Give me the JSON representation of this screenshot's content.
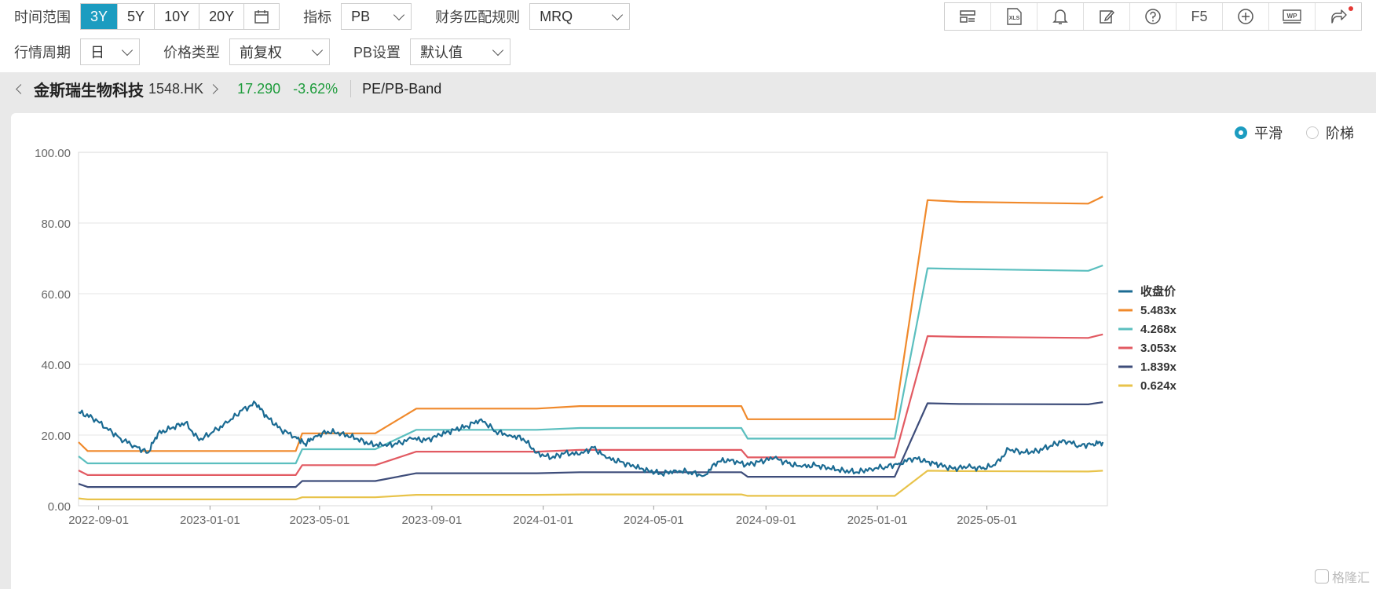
{
  "toolbar": {
    "time_range_label": "时间范围",
    "ranges": [
      "3Y",
      "5Y",
      "10Y",
      "20Y"
    ],
    "active_range": "3Y",
    "indicator_label": "指标",
    "indicator_value": "PB",
    "rule_label": "财务匹配规则",
    "rule_value": "MRQ",
    "period_label": "行情周期",
    "period_value": "日",
    "price_type_label": "价格类型",
    "price_type_value": "前复权",
    "pb_setting_label": "PB设置",
    "pb_setting_value": "默认值",
    "tools": [
      {
        "icon": "layout-icon"
      },
      {
        "icon": "xls-export-icon",
        "text": "XLS"
      },
      {
        "icon": "bell-icon"
      },
      {
        "icon": "edit-icon"
      },
      {
        "icon": "help-icon"
      },
      {
        "icon": "f5-refresh",
        "text": "F5"
      },
      {
        "icon": "add-circle-icon"
      },
      {
        "icon": "wps-icon",
        "text": "WP"
      },
      {
        "icon": "share-icon"
      }
    ]
  },
  "stock": {
    "name": "金斯瑞生物科技",
    "code": "1548.HK",
    "price": "17.290",
    "change": "-3.62%",
    "chart_title": "PE/PB-Band",
    "price_color": "#1e9c3c"
  },
  "display_mode": {
    "options": [
      "平滑",
      "阶梯"
    ],
    "selected": "平滑"
  },
  "chart_data": {
    "type": "line",
    "x_ticks": [
      "2022-09-01",
      "2023-01-01",
      "2023-05-01",
      "2023-09-01",
      "2024-01-01",
      "2024-05-01",
      "2024-09-01",
      "2025-01-01",
      "2025-05-01"
    ],
    "y_ticks": [
      "0.00",
      "20.00",
      "40.00",
      "60.00",
      "80.00",
      "100.00"
    ],
    "ylim": [
      0,
      100
    ],
    "xlim": [
      "2022-08-10",
      "2025-09-10"
    ],
    "grid": "horizontal",
    "legend_position": "right",
    "series": [
      {
        "name": "收盘价",
        "color": "#1b6b93",
        "width": 2.2,
        "points": [
          [
            "2022-08-10",
            26.5
          ],
          [
            "2022-08-25",
            25.0
          ],
          [
            "2022-09-10",
            22.0
          ],
          [
            "2022-09-25",
            19.0
          ],
          [
            "2022-10-10",
            17.0
          ],
          [
            "2022-10-25",
            15.0
          ],
          [
            "2022-11-05",
            20.5
          ],
          [
            "2022-11-20",
            22.0
          ],
          [
            "2022-12-05",
            23.5
          ],
          [
            "2022-12-20",
            18.5
          ],
          [
            "2023-01-05",
            21.0
          ],
          [
            "2023-01-20",
            23.5
          ],
          [
            "2023-02-05",
            27.0
          ],
          [
            "2023-02-20",
            29.0
          ],
          [
            "2023-03-05",
            25.0
          ],
          [
            "2023-03-20",
            21.5
          ],
          [
            "2023-04-05",
            19.5
          ],
          [
            "2023-04-15",
            17.5
          ],
          [
            "2023-04-25",
            19.5
          ],
          [
            "2023-05-10",
            21.0
          ],
          [
            "2023-05-25",
            20.5
          ],
          [
            "2023-06-10",
            19.0
          ],
          [
            "2023-06-25",
            17.5
          ],
          [
            "2023-07-10",
            17.0
          ],
          [
            "2023-07-25",
            17.5
          ],
          [
            "2023-08-10",
            19.0
          ],
          [
            "2023-08-25",
            18.5
          ],
          [
            "2023-09-10",
            20.0
          ],
          [
            "2023-09-25",
            21.5
          ],
          [
            "2023-10-10",
            22.5
          ],
          [
            "2023-10-25",
            24.5
          ],
          [
            "2023-11-10",
            21.0
          ],
          [
            "2023-11-25",
            20.0
          ],
          [
            "2023-12-10",
            19.0
          ],
          [
            "2023-12-25",
            15.0
          ],
          [
            "2024-01-10",
            13.5
          ],
          [
            "2024-01-25",
            15.0
          ],
          [
            "2024-02-10",
            14.5
          ],
          [
            "2024-02-25",
            16.5
          ],
          [
            "2024-03-10",
            13.5
          ],
          [
            "2024-03-25",
            12.5
          ],
          [
            "2024-04-10",
            11.0
          ],
          [
            "2024-04-25",
            10.0
          ],
          [
            "2024-05-10",
            9.0
          ],
          [
            "2024-05-25",
            10.0
          ],
          [
            "2024-06-10",
            9.5
          ],
          [
            "2024-06-25",
            8.5
          ],
          [
            "2024-07-10",
            12.5
          ],
          [
            "2024-07-25",
            13.0
          ],
          [
            "2024-08-10",
            11.5
          ],
          [
            "2024-08-25",
            12.5
          ],
          [
            "2024-09-10",
            13.5
          ],
          [
            "2024-09-25",
            12.0
          ],
          [
            "2024-10-10",
            11.0
          ],
          [
            "2024-10-25",
            11.5
          ],
          [
            "2024-11-10",
            10.5
          ],
          [
            "2024-11-25",
            10.0
          ],
          [
            "2024-12-10",
            9.5
          ],
          [
            "2024-12-25",
            10.5
          ],
          [
            "2025-01-10",
            11.0
          ],
          [
            "2025-01-25",
            12.0
          ],
          [
            "2025-02-10",
            13.5
          ],
          [
            "2025-02-25",
            12.5
          ],
          [
            "2025-03-10",
            11.5
          ],
          [
            "2025-03-25",
            10.5
          ],
          [
            "2025-04-10",
            11.0
          ],
          [
            "2025-04-25",
            10.5
          ],
          [
            "2025-05-10",
            11.5
          ],
          [
            "2025-05-25",
            16.0
          ],
          [
            "2025-06-10",
            15.0
          ],
          [
            "2025-06-25",
            15.5
          ],
          [
            "2025-07-10",
            17.0
          ],
          [
            "2025-07-25",
            18.5
          ],
          [
            "2025-08-10",
            17.0
          ],
          [
            "2025-08-25",
            17.5
          ],
          [
            "2025-09-05",
            18.0
          ]
        ]
      },
      {
        "name": "5.483x",
        "color": "#f0892b",
        "width": 2.2,
        "points": [
          [
            "2022-08-10",
            18.0
          ],
          [
            "2022-08-20",
            15.5
          ],
          [
            "2023-04-05",
            15.5
          ],
          [
            "2023-04-12",
            20.5
          ],
          [
            "2023-07-01",
            20.5
          ],
          [
            "2023-08-15",
            27.5
          ],
          [
            "2023-12-25",
            27.5
          ],
          [
            "2024-02-10",
            28.2
          ],
          [
            "2024-08-05",
            28.2
          ],
          [
            "2024-08-12",
            24.5
          ],
          [
            "2025-01-20",
            24.5
          ],
          [
            "2025-02-25",
            86.5
          ],
          [
            "2025-04-01",
            86.0
          ],
          [
            "2025-08-20",
            85.5
          ],
          [
            "2025-09-05",
            87.5
          ]
        ]
      },
      {
        "name": "4.268x",
        "color": "#5bbfbf",
        "width": 2.2,
        "points": [
          [
            "2022-08-10",
            14.0
          ],
          [
            "2022-08-20",
            12.0
          ],
          [
            "2023-04-05",
            12.0
          ],
          [
            "2023-04-12",
            16.0
          ],
          [
            "2023-07-01",
            16.0
          ],
          [
            "2023-08-15",
            21.5
          ],
          [
            "2023-12-25",
            21.5
          ],
          [
            "2024-02-10",
            22.0
          ],
          [
            "2024-08-05",
            22.0
          ],
          [
            "2024-08-12",
            19.0
          ],
          [
            "2025-01-20",
            19.0
          ],
          [
            "2025-02-25",
            67.2
          ],
          [
            "2025-04-01",
            67.0
          ],
          [
            "2025-08-20",
            66.5
          ],
          [
            "2025-09-05",
            68.0
          ]
        ]
      },
      {
        "name": "3.053x",
        "color": "#e25a62",
        "width": 2.2,
        "points": [
          [
            "2022-08-10",
            10.0
          ],
          [
            "2022-08-20",
            8.7
          ],
          [
            "2023-04-05",
            8.7
          ],
          [
            "2023-04-12",
            11.5
          ],
          [
            "2023-07-01",
            11.5
          ],
          [
            "2023-08-15",
            15.3
          ],
          [
            "2023-12-25",
            15.3
          ],
          [
            "2024-02-10",
            15.8
          ],
          [
            "2024-08-05",
            15.8
          ],
          [
            "2024-08-12",
            13.7
          ],
          [
            "2025-01-20",
            13.7
          ],
          [
            "2025-02-25",
            48.0
          ],
          [
            "2025-04-01",
            47.8
          ],
          [
            "2025-08-20",
            47.5
          ],
          [
            "2025-09-05",
            48.5
          ]
        ]
      },
      {
        "name": "1.839x",
        "color": "#3e4d7a",
        "width": 2.2,
        "points": [
          [
            "2022-08-10",
            6.2
          ],
          [
            "2022-08-20",
            5.3
          ],
          [
            "2023-04-05",
            5.3
          ],
          [
            "2023-04-12",
            7.0
          ],
          [
            "2023-07-01",
            7.0
          ],
          [
            "2023-08-15",
            9.2
          ],
          [
            "2023-12-25",
            9.2
          ],
          [
            "2024-02-10",
            9.5
          ],
          [
            "2024-08-05",
            9.5
          ],
          [
            "2024-08-12",
            8.2
          ],
          [
            "2025-01-20",
            8.2
          ],
          [
            "2025-02-25",
            29.0
          ],
          [
            "2025-04-01",
            28.8
          ],
          [
            "2025-08-20",
            28.7
          ],
          [
            "2025-09-05",
            29.3
          ]
        ]
      },
      {
        "name": "0.624x",
        "color": "#e8c34a",
        "width": 2.2,
        "points": [
          [
            "2022-08-10",
            2.1
          ],
          [
            "2022-08-20",
            1.8
          ],
          [
            "2023-04-05",
            1.8
          ],
          [
            "2023-04-12",
            2.4
          ],
          [
            "2023-07-01",
            2.4
          ],
          [
            "2023-08-15",
            3.1
          ],
          [
            "2023-12-25",
            3.1
          ],
          [
            "2024-02-10",
            3.2
          ],
          [
            "2024-08-05",
            3.2
          ],
          [
            "2024-08-12",
            2.8
          ],
          [
            "2025-01-20",
            2.8
          ],
          [
            "2025-02-25",
            9.9
          ],
          [
            "2025-04-01",
            9.8
          ],
          [
            "2025-08-20",
            9.7
          ],
          [
            "2025-09-05",
            9.9
          ]
        ]
      }
    ]
  },
  "watermark": "格隆汇"
}
